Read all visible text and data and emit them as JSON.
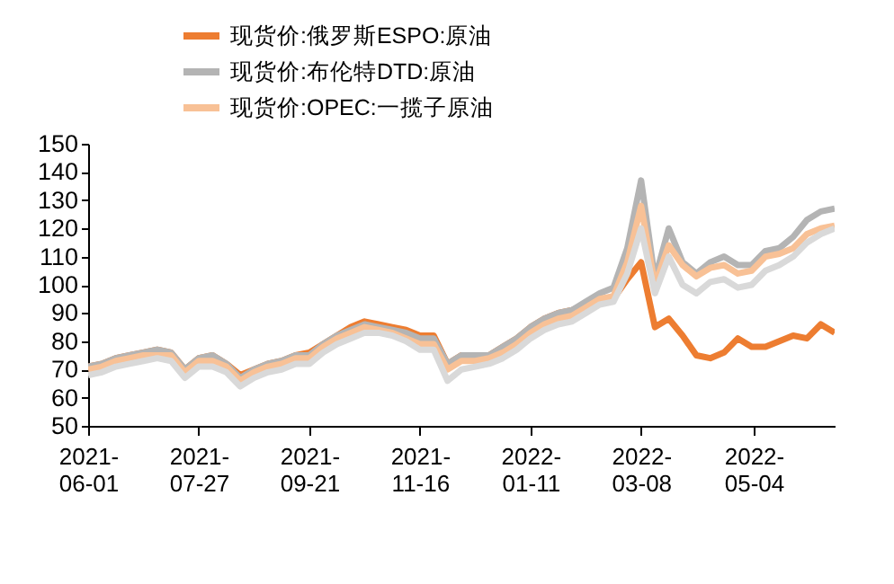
{
  "chart_data": {
    "type": "line",
    "x": [
      "2021-06-01",
      "2021-06-08",
      "2021-06-15",
      "2021-06-22",
      "2021-06-29",
      "2021-07-06",
      "2021-07-13",
      "2021-07-20",
      "2021-07-27",
      "2021-08-03",
      "2021-08-10",
      "2021-08-17",
      "2021-08-24",
      "2021-08-31",
      "2021-09-07",
      "2021-09-14",
      "2021-09-21",
      "2021-09-28",
      "2021-10-05",
      "2021-10-12",
      "2021-10-19",
      "2021-10-26",
      "2021-11-02",
      "2021-11-09",
      "2021-11-16",
      "2021-11-23",
      "2021-11-30",
      "2021-12-07",
      "2021-12-14",
      "2021-12-21",
      "2021-12-28",
      "2022-01-04",
      "2022-01-11",
      "2022-01-18",
      "2022-01-25",
      "2022-02-01",
      "2022-02-08",
      "2022-02-15",
      "2022-02-22",
      "2022-03-01",
      "2022-03-08",
      "2022-03-15",
      "2022-03-22",
      "2022-03-29",
      "2022-04-05",
      "2022-04-12",
      "2022-04-19",
      "2022-04-26",
      "2022-05-03",
      "2022-05-10",
      "2022-05-17",
      "2022-05-24",
      "2022-05-31",
      "2022-06-07",
      "2022-06-14"
    ],
    "series": [
      {
        "name": "现货价:俄罗斯ESPO:原油",
        "color": "#ed7d31",
        "values": [
          71,
          72,
          74,
          75,
          76,
          77,
          76,
          70,
          74,
          75,
          72,
          68,
          70,
          72,
          73,
          75,
          76,
          79,
          82,
          85,
          87,
          86,
          85,
          84,
          82,
          82,
          72,
          75,
          75,
          75,
          78,
          81,
          85,
          88,
          90,
          91,
          93,
          95,
          95,
          102,
          108,
          85,
          88,
          82,
          75,
          74,
          76,
          81,
          78,
          78,
          80,
          82,
          81,
          86,
          83
        ]
      },
      {
        "name": "现货价:布伦特DTD:原油",
        "color": "#b4b4b4",
        "values": [
          71,
          72,
          74,
          75,
          76,
          77,
          76,
          70,
          74,
          75,
          72,
          67,
          70,
          72,
          73,
          75,
          75,
          79,
          82,
          84,
          86,
          85,
          84,
          83,
          81,
          81,
          72,
          75,
          75,
          75,
          78,
          81,
          85,
          88,
          90,
          91,
          94,
          97,
          99,
          113,
          137,
          102,
          120,
          108,
          104,
          108,
          110,
          107,
          107,
          112,
          113,
          117,
          123,
          126,
          127
        ]
      },
      {
        "name": "现货价:OPEC:一揽子原油",
        "color": "#f8c196",
        "values": [
          70,
          71,
          73,
          74,
          75,
          75,
          75,
          69,
          73,
          73,
          71,
          66,
          69,
          71,
          72,
          74,
          74,
          78,
          81,
          83,
          85,
          84,
          83,
          81,
          79,
          79,
          70,
          73,
          73,
          74,
          76,
          79,
          83,
          86,
          88,
          89,
          92,
          95,
          96,
          108,
          128,
          100,
          114,
          107,
          103,
          106,
          107,
          104,
          105,
          110,
          111,
          113,
          118,
          120,
          121
        ]
      },
      {
        "color": "#d9d9d9",
        "values": [
          68,
          69,
          71,
          72,
          73,
          74,
          73,
          67,
          71,
          71,
          69,
          64,
          67,
          69,
          70,
          72,
          72,
          76,
          79,
          81,
          83,
          83,
          82,
          80,
          77,
          77,
          66,
          70,
          71,
          72,
          74,
          77,
          81,
          84,
          86,
          87,
          90,
          93,
          94,
          104,
          120,
          97,
          110,
          100,
          97,
          101,
          102,
          99,
          100,
          105,
          107,
          110,
          115,
          118,
          120
        ]
      }
    ],
    "xlim": [
      "2021-06-01",
      "2022-06-14"
    ],
    "xticks": [
      "2021-06-01",
      "2021-07-27",
      "2021-09-21",
      "2021-11-16",
      "2022-01-11",
      "2022-03-08",
      "2022-05-04"
    ],
    "ylim": [
      50,
      150
    ],
    "yticks": [
      50,
      60,
      70,
      80,
      90,
      100,
      110,
      120,
      130,
      140,
      150
    ],
    "legend": "top",
    "grid": false,
    "marker": "none",
    "line_style": "solid"
  }
}
